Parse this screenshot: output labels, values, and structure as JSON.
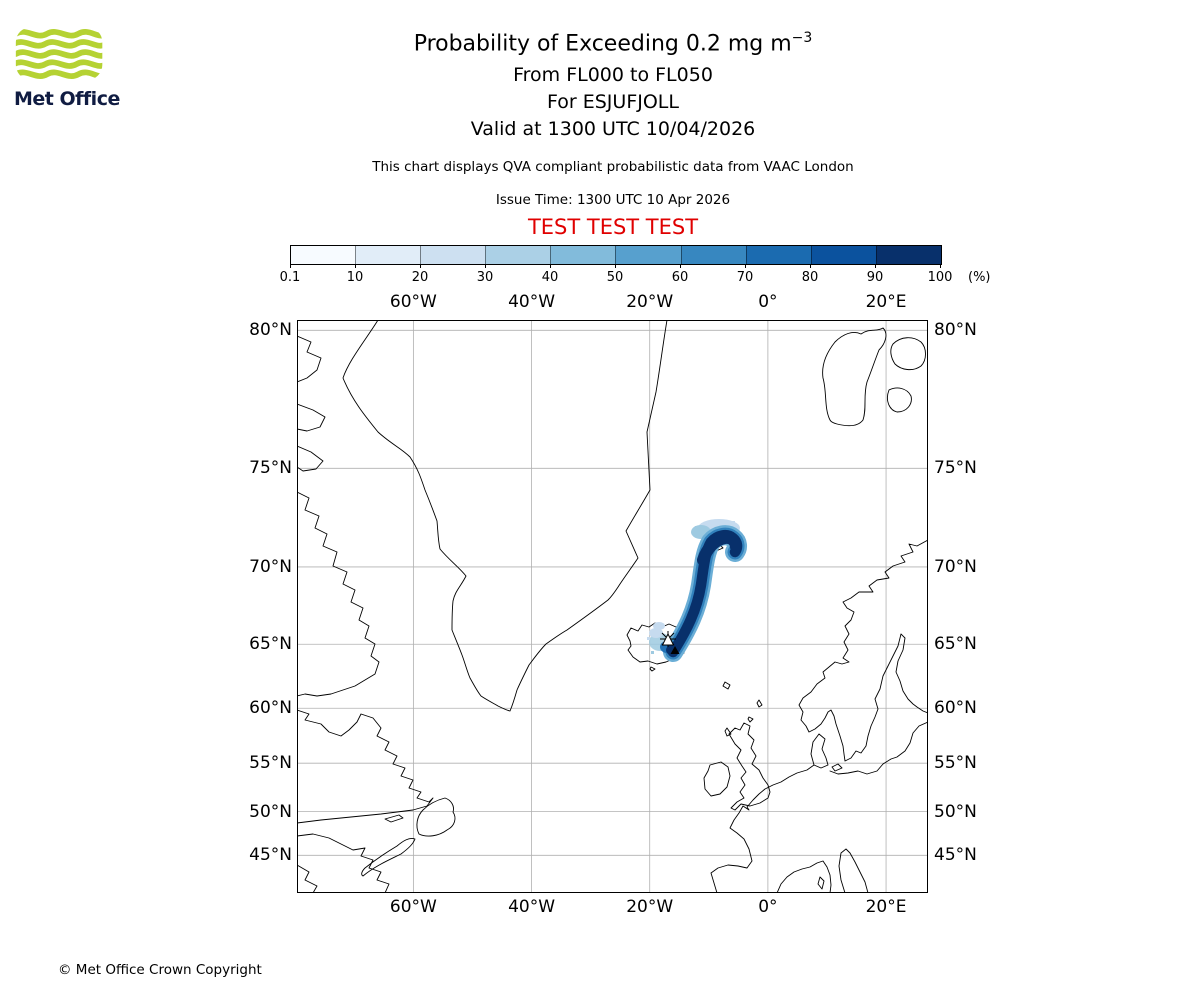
{
  "header": {
    "logo_text": "Met Office",
    "title_main": "Probability of Exceeding 0.2 mg m",
    "title_exponent": "−3",
    "flight_levels": "From FL000 to FL050",
    "volcano_line": "For ESJUFJOLL",
    "valid_line": "Valid at 1300 UTC 10/04/2026",
    "note": "This chart displays QVA compliant probabilistic data from VAAC London",
    "issue_time": "Issue Time: 1300 UTC 10 Apr 2026",
    "test_banner": "TEST TEST TEST",
    "test_banner_color": "#e00000",
    "logo_green": "#b5d233",
    "logo_navy": "#101c42"
  },
  "chart_data": {
    "type": "probability_map",
    "title": "Probability of Exceeding 0.2 mg m-3",
    "threshold": "0.2 mg m-3",
    "flight_level_range": [
      "FL000",
      "FL050"
    ],
    "volcano": {
      "name": "ESJUFJOLL",
      "lat": 64.27,
      "lon": -16.65
    },
    "valid_time": "1300 UTC 10/04/2026",
    "issue_time": "1300 UTC 10 Apr 2026",
    "source": "VAAC London",
    "projection": {
      "type": "mercator",
      "lon_min": -79.7,
      "lon_max": 27.1,
      "lat_min": 40.3,
      "lat_max": 80.3
    },
    "lon_ticks": [
      {
        "value": -60,
        "label": "60°W"
      },
      {
        "value": -40,
        "label": "40°W"
      },
      {
        "value": -20,
        "label": "20°W"
      },
      {
        "value": 0,
        "label": "0°"
      },
      {
        "value": 20,
        "label": "20°E"
      }
    ],
    "lat_ticks": [
      {
        "value": 80,
        "label": "80°N"
      },
      {
        "value": 75,
        "label": "75°N"
      },
      {
        "value": 70,
        "label": "70°N"
      },
      {
        "value": 65,
        "label": "65°N"
      },
      {
        "value": 60,
        "label": "60°N"
      },
      {
        "value": 55,
        "label": "55°N"
      },
      {
        "value": 50,
        "label": "50°N"
      },
      {
        "value": 45,
        "label": "45°N"
      }
    ],
    "colorbar": {
      "unit": "(%)",
      "tick_labels": [
        "0.1",
        "10",
        "20",
        "30",
        "40",
        "50",
        "60",
        "70",
        "80",
        "90",
        "100"
      ],
      "colors": [
        "#f7fbff",
        "#e1edf8",
        "#cde0f1",
        "#abd0e6",
        "#82bbdb",
        "#57a0ce",
        "#3787c0",
        "#1b6bb0",
        "#0b529e",
        "#08306b"
      ]
    },
    "plume": {
      "description": "High-probability ash plume extending NNE from Esjufjoll (Iceland) to about 72N 8W, hooking eastward at its northern end; probabilities near 100% in the core with lighter fringes near the hook top and over east Iceland",
      "core_color": "#08306b"
    }
  },
  "footer": {
    "copyright": "© Met Office Crown Copyright"
  }
}
